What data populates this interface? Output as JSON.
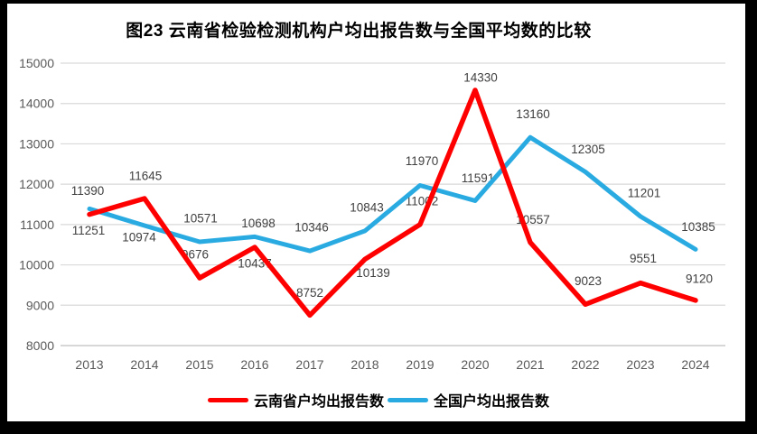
{
  "chart_data": {
    "type": "line",
    "title": "图23 云南省检验检测机构户均出报告数与全国平均数的比较",
    "categories": [
      "2013",
      "2014",
      "2015",
      "2016",
      "2017",
      "2018",
      "2019",
      "2020",
      "2021",
      "2022",
      "2023",
      "2024"
    ],
    "series": [
      {
        "key": "yunnan",
        "name": "云南省户均出报告数",
        "color": "#FE0000",
        "stroke_width": 5.5,
        "values": [
          11251,
          11645,
          9676,
          10437,
          8752,
          10139,
          11002,
          14330,
          10557,
          9023,
          9551,
          9120
        ]
      },
      {
        "key": "national",
        "name": "全国户均出报告数",
        "color": "#29ABE2",
        "stroke_width": 5,
        "values": [
          11390,
          10974,
          10571,
          10698,
          10346,
          10843,
          11970,
          11591,
          13160,
          12305,
          11201,
          10385
        ]
      }
    ],
    "ylim": [
      8000,
      15000
    ],
    "yticks": [
      8000,
      9000,
      10000,
      11000,
      12000,
      13000,
      14000,
      15000
    ],
    "xlabel": "",
    "ylabel": "",
    "grid": "horizontal",
    "legend_position": "bottom",
    "colors": {
      "gridline": "#D9D9D9",
      "axis_line": "#BFBFBF",
      "tick_label": "#595959",
      "data_label": "#3F3F3F"
    },
    "label_offsets": {
      "yunnan": [
        [
          -1,
          18
        ],
        [
          1,
          -25
        ],
        [
          -5,
          -26
        ],
        [
          0,
          18
        ],
        [
          0,
          -25
        ],
        [
          9,
          15
        ],
        [
          2,
          -26
        ],
        [
          6,
          -14
        ],
        [
          3,
          -25
        ],
        [
          3,
          -26
        ],
        [
          3,
          -27
        ],
        [
          4,
          -24
        ]
      ],
      "national": [
        [
          -2,
          -20
        ],
        [
          -6,
          13
        ],
        [
          1,
          -26
        ],
        [
          4,
          -15
        ],
        [
          2,
          -26
        ],
        [
          2,
          -26
        ],
        [
          2,
          -27
        ],
        [
          3,
          -25
        ],
        [
          3,
          -26
        ],
        [
          3,
          -25
        ],
        [
          4,
          -26
        ],
        [
          3,
          -25
        ]
      ]
    }
  }
}
